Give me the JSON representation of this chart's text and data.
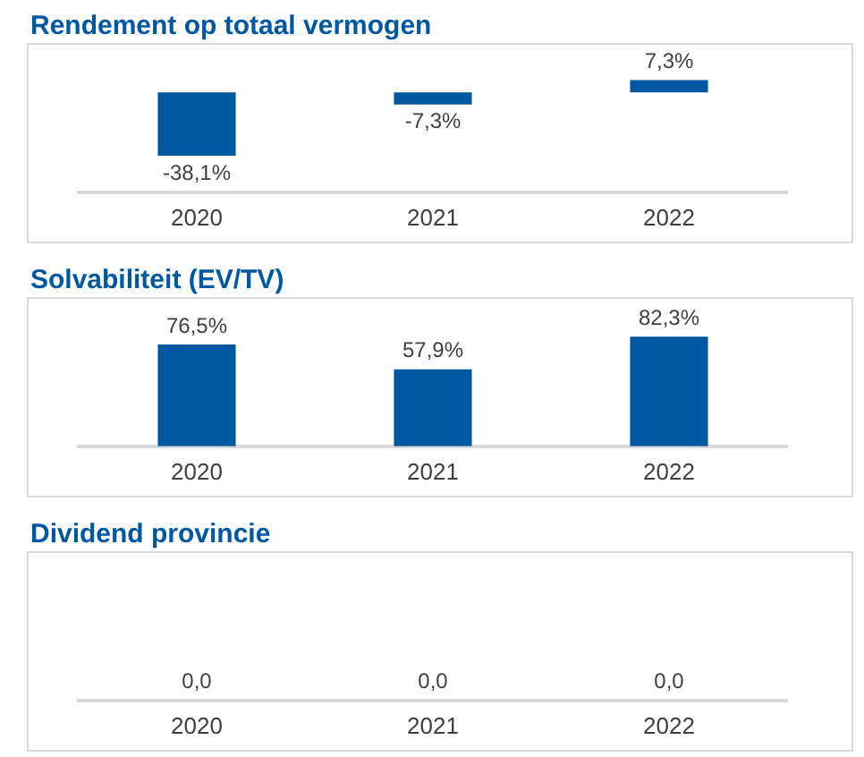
{
  "chart_data": [
    {
      "type": "bar",
      "title": "Rendement op totaal vermogen",
      "categories": [
        "2020",
        "2021",
        "2022"
      ],
      "values": [
        -38.1,
        -7.3,
        7.3
      ],
      "color": "#0058a3",
      "value_labels": [
        "-38,1%",
        "-7,3%",
        "7,3%"
      ]
    },
    {
      "type": "bar",
      "title": "Solvabiliteit (EV/TV)",
      "categories": [
        "2020",
        "2021",
        "2022"
      ],
      "values": [
        76.5,
        57.9,
        82.3
      ],
      "color": "#0058a3",
      "value_labels": [
        "76,5%",
        "57,9%",
        "82,3%"
      ]
    },
    {
      "type": "other",
      "title": "Dividend provincie",
      "categories": [
        "2020",
        "2021",
        "2022"
      ],
      "values": [
        0,
        0,
        0
      ],
      "color": "#0058a3",
      "value_labels": [
        "0,0",
        "0,0",
        "0,0"
      ]
    }
  ]
}
